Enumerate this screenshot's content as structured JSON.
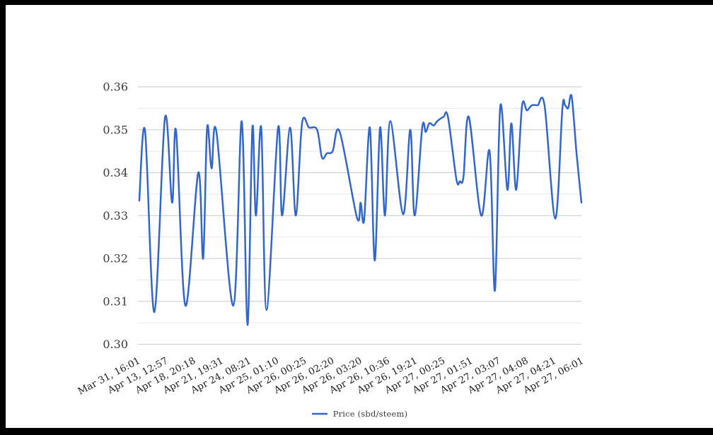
{
  "chart_data": {
    "type": "line",
    "title": "",
    "xlabel": "",
    "ylabel": "",
    "ylim": [
      0.3,
      0.36
    ],
    "y_ticks": [
      0.3,
      0.31,
      0.32,
      0.33,
      0.34,
      0.35,
      0.36
    ],
    "grid": "horizontal, major lines at 0.01 with minor lines at 0.005",
    "legend_position": "bottom-center",
    "x_tick_labels": [
      "Mar 31, 16:01",
      "Apr 13, 12:57",
      "Apr 18, 20:18",
      "Apr 21, 19:31",
      "Apr 24, 08:21",
      "Apr 25, 01:10",
      "Apr 26, 00:25",
      "Apr 26, 02:20",
      "Apr 26, 03:20",
      "Apr 26, 10:36",
      "Apr 26, 19:21",
      "Apr 27, 00:25",
      "Apr 27, 01:51",
      "Apr 27, 03:07",
      "Apr 27, 04:08",
      "Apr 27, 04:21",
      "Apr 27, 06:01"
    ],
    "series": [
      {
        "name": "Price (sbd/steem)",
        "color": "#3366cc"
      }
    ],
    "points": [
      [
        0.003,
        0.3335
      ],
      [
        0.016,
        0.3498
      ],
      [
        0.037,
        0.3075
      ],
      [
        0.061,
        0.3528
      ],
      [
        0.077,
        0.333
      ],
      [
        0.086,
        0.3498
      ],
      [
        0.107,
        0.309
      ],
      [
        0.136,
        0.34
      ],
      [
        0.147,
        0.32
      ],
      [
        0.156,
        0.3505
      ],
      [
        0.166,
        0.341
      ],
      [
        0.177,
        0.3495
      ],
      [
        0.215,
        0.309
      ],
      [
        0.234,
        0.352
      ],
      [
        0.247,
        0.3045
      ],
      [
        0.258,
        0.3505
      ],
      [
        0.266,
        0.33
      ],
      [
        0.278,
        0.3505
      ],
      [
        0.29,
        0.308
      ],
      [
        0.316,
        0.3505
      ],
      [
        0.325,
        0.33
      ],
      [
        0.343,
        0.3505
      ],
      [
        0.356,
        0.33
      ],
      [
        0.37,
        0.3515
      ],
      [
        0.386,
        0.3505
      ],
      [
        0.404,
        0.35
      ],
      [
        0.415,
        0.3435
      ],
      [
        0.426,
        0.3445
      ],
      [
        0.439,
        0.345
      ],
      [
        0.455,
        0.3495
      ],
      [
        0.494,
        0.3295
      ],
      [
        0.502,
        0.333
      ],
      [
        0.51,
        0.329
      ],
      [
        0.523,
        0.3505
      ],
      [
        0.534,
        0.3195
      ],
      [
        0.546,
        0.3505
      ],
      [
        0.557,
        0.33
      ],
      [
        0.569,
        0.352
      ],
      [
        0.598,
        0.3303
      ],
      [
        0.614,
        0.35
      ],
      [
        0.624,
        0.33
      ],
      [
        0.641,
        0.3505
      ],
      [
        0.649,
        0.3495
      ],
      [
        0.657,
        0.3515
      ],
      [
        0.667,
        0.351
      ],
      [
        0.675,
        0.352
      ],
      [
        0.689,
        0.353
      ],
      [
        0.699,
        0.353
      ],
      [
        0.718,
        0.3385
      ],
      [
        0.726,
        0.338
      ],
      [
        0.734,
        0.339
      ],
      [
        0.746,
        0.353
      ],
      [
        0.774,
        0.33
      ],
      [
        0.793,
        0.345
      ],
      [
        0.805,
        0.3125
      ],
      [
        0.817,
        0.3555
      ],
      [
        0.833,
        0.336
      ],
      [
        0.842,
        0.3515
      ],
      [
        0.853,
        0.336
      ],
      [
        0.866,
        0.3555
      ],
      [
        0.877,
        0.3545
      ],
      [
        0.888,
        0.3557
      ],
      [
        0.901,
        0.3557
      ],
      [
        0.917,
        0.3555
      ],
      [
        0.941,
        0.3293
      ],
      [
        0.957,
        0.3548
      ],
      [
        0.963,
        0.3557
      ],
      [
        0.97,
        0.355
      ],
      [
        0.978,
        0.3577
      ],
      [
        0.989,
        0.3445
      ],
      [
        1.0,
        0.333
      ]
    ]
  },
  "legend": {
    "label": "Price (sbd/steem)"
  },
  "colors": {
    "line": "#3366cc",
    "grid_major": "#c9c9c9",
    "grid_minor": "#e7e7e7",
    "y_label_text": "#3c3c3c",
    "x_label_text": "#1f1f1f",
    "frame": "#000000"
  }
}
